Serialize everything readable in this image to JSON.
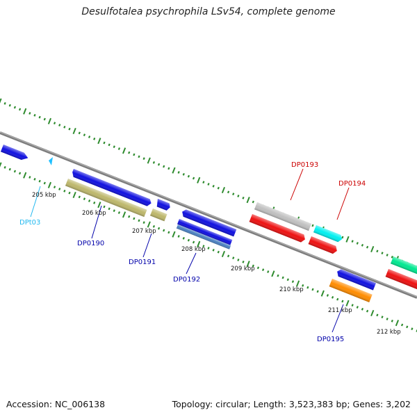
{
  "title": "Desulfotalea psychrophila LSv54, complete genome",
  "footer": {
    "accession": "Accession: NC_006138",
    "summary": "Topology: circular; Length: 3,523,383 bp; Genes: 3,202"
  },
  "colors": {
    "backbone": "#8a8a8a",
    "ticks": "#2e8b2e",
    "cds_blue": "#1010e0",
    "trna_cyan": "#20c0ff",
    "khaki": "#bdb76b",
    "red": "#ee1111",
    "grey": "#c0c0c0",
    "cyan": "#00f0f0",
    "orange": "#ff8c00",
    "steel": "#4a7fc0",
    "spring": "#00e890",
    "label_blue": "#0000aa",
    "label_red": "#cc0000",
    "label_cyan": "#20b8f0"
  },
  "scale_labels": [
    "205 kbp",
    "206 kbp",
    "207 kbp",
    "208 kbp",
    "209 kbp",
    "210 kbp",
    "211 kbp",
    "212 kbp"
  ],
  "gene_labels": {
    "dpt03": "DPt03",
    "dp0190": "DP0190",
    "dp0191": "DP0191",
    "dp0192": "DP0192",
    "dp0193": "DP0193",
    "dp0194": "DP0194",
    "dp0195": "DP0195"
  }
}
